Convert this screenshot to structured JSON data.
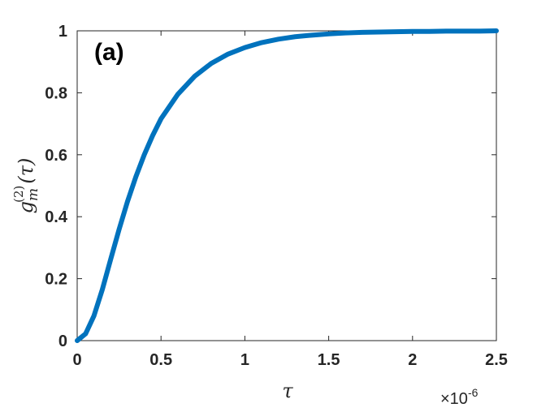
{
  "chart_data": {
    "type": "line",
    "panel_label": "(a)",
    "xlabel": "τ",
    "ylabel": {
      "base": "g",
      "sup": "(2)",
      "sub": "m",
      "arg": "(τ)"
    },
    "x_exponent": {
      "prefix": "×10",
      "power": "-6"
    },
    "xlim": [
      0,
      2.5
    ],
    "ylim": [
      0,
      1
    ],
    "x_ticks": [
      "0",
      "0.5",
      "1",
      "1.5",
      "2",
      "2.5"
    ],
    "y_ticks": [
      "0",
      "0.2",
      "0.4",
      "0.6",
      "0.8",
      "1"
    ],
    "grid": false,
    "series": [
      {
        "color": "#0072BD",
        "x": [
          0,
          0.05,
          0.1,
          0.15,
          0.2,
          0.25,
          0.3,
          0.35,
          0.4,
          0.45,
          0.5,
          0.6,
          0.7,
          0.8,
          0.9,
          1.0,
          1.1,
          1.2,
          1.3,
          1.4,
          1.5,
          1.6,
          1.7,
          1.8,
          1.9,
          2.0,
          2.1,
          2.2,
          2.3,
          2.4,
          2.5
        ],
        "y": [
          0,
          0.022,
          0.08,
          0.165,
          0.263,
          0.359,
          0.449,
          0.529,
          0.6,
          0.662,
          0.716,
          0.795,
          0.853,
          0.895,
          0.925,
          0.946,
          0.962,
          0.973,
          0.981,
          0.986,
          0.99,
          0.993,
          0.995,
          0.996,
          0.997,
          0.998,
          0.998,
          0.999,
          0.999,
          0.999,
          1.0
        ]
      }
    ]
  }
}
